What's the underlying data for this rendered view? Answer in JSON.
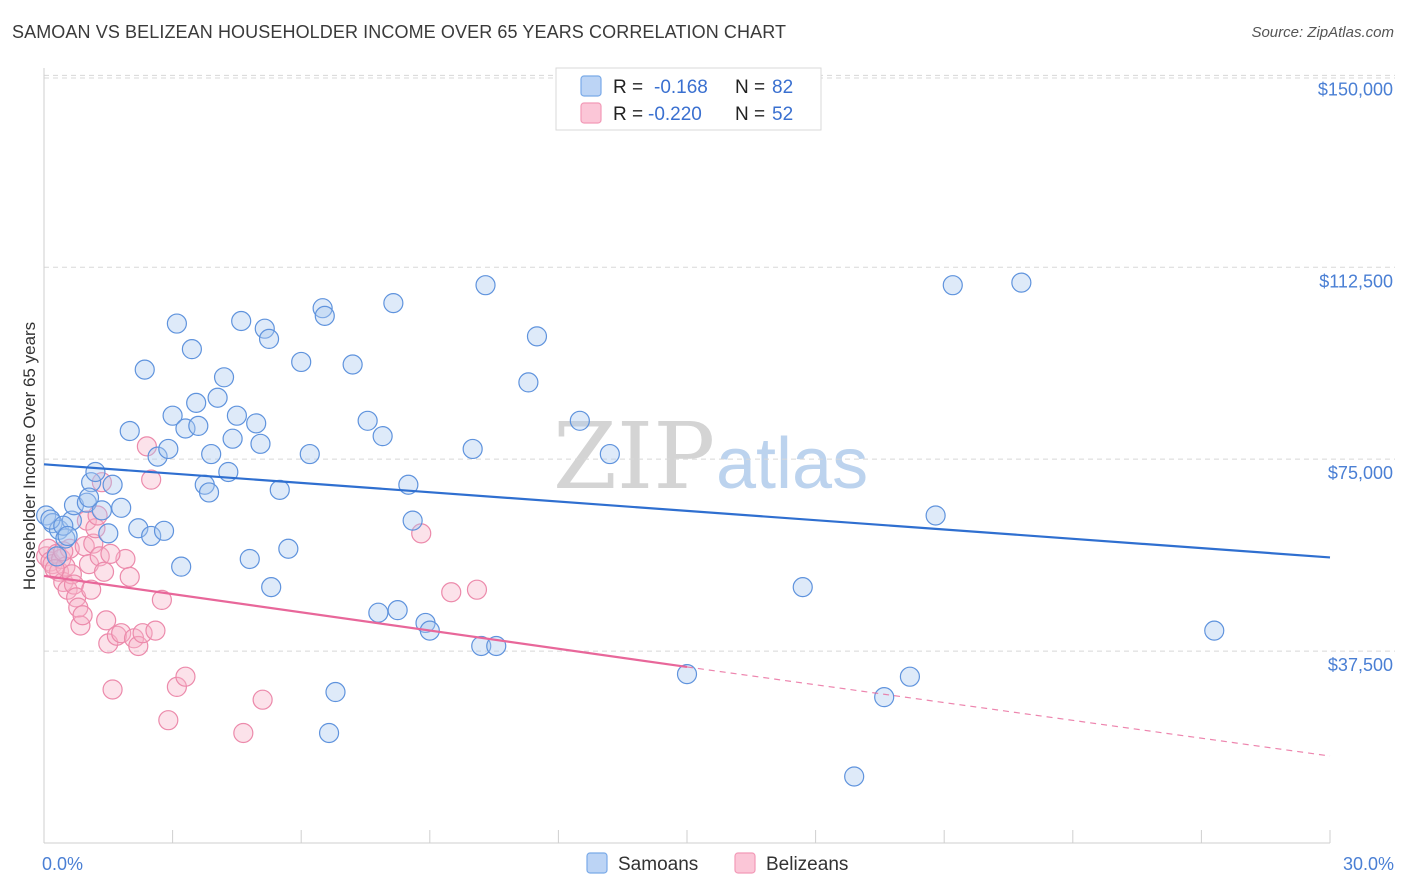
{
  "header": {
    "title": "SAMOAN VS BELIZEAN HOUSEHOLDER INCOME OVER 65 YEARS CORRELATION CHART",
    "source": "Source: ZipAtlas.com"
  },
  "legend": {
    "samoans": {
      "r_label": "R =",
      "r_value": "-0.168",
      "n_label": "N =",
      "n_value": "82"
    },
    "belizeans": {
      "r_label": "R =",
      "r_value": "-0.220",
      "n_label": "N =",
      "n_value": "52"
    }
  },
  "watermark": {
    "part1": "ZIP",
    "part2": "atlas"
  },
  "chart_data": {
    "type": "scatter",
    "title": "SAMOAN VS BELIZEAN HOUSEHOLDER INCOME OVER 65 YEARS CORRELATION CHART",
    "xlabel": "",
    "ylabel": "Householder Income Over 65 years",
    "xlim": [
      0,
      30
    ],
    "ylim": [
      0,
      153000
    ],
    "x_tick_labels": [
      "0.0%",
      "30.0%"
    ],
    "y_ticks": [
      37500,
      75000,
      112500,
      150000
    ],
    "y_tick_labels": [
      "$37,500",
      "$75,000",
      "$112,500",
      "$150,000"
    ],
    "grid": true,
    "legend_position": "top-center",
    "bottom_legend": [
      "Samoans",
      "Belizeans"
    ],
    "colors": {
      "samoans": "#7aaae8",
      "belizeans": "#f29ab7",
      "samoans_line": "#2f6fd0",
      "belizeans_line": "#e8679a"
    },
    "series": [
      {
        "name": "Samoans",
        "r": -0.168,
        "n": 82,
        "trend": {
          "x": [
            0,
            30
          ],
          "y": [
            74000,
            55800
          ]
        },
        "points": [
          [
            0.05,
            64000
          ],
          [
            0.2,
            62500
          ],
          [
            0.35,
            61200
          ],
          [
            0.5,
            59500
          ],
          [
            0.65,
            63000
          ],
          [
            0.15,
            63200
          ],
          [
            0.45,
            62000
          ],
          [
            0.55,
            60000
          ],
          [
            0.7,
            66000
          ],
          [
            1.0,
            66500
          ],
          [
            1.1,
            70500
          ],
          [
            1.2,
            72500
          ],
          [
            1.35,
            65000
          ],
          [
            1.5,
            60500
          ],
          [
            1.6,
            70000
          ],
          [
            1.8,
            65500
          ],
          [
            2.0,
            80500
          ],
          [
            2.2,
            61500
          ],
          [
            2.35,
            92500
          ],
          [
            2.5,
            60000
          ],
          [
            2.65,
            75500
          ],
          [
            2.8,
            61000
          ],
          [
            2.9,
            77000
          ],
          [
            3.0,
            83500
          ],
          [
            3.1,
            101500
          ],
          [
            3.2,
            54000
          ],
          [
            3.3,
            81000
          ],
          [
            3.45,
            96500
          ],
          [
            3.55,
            86000
          ],
          [
            3.6,
            81500
          ],
          [
            3.9,
            76000
          ],
          [
            3.75,
            70000
          ],
          [
            3.85,
            68500
          ],
          [
            4.05,
            87000
          ],
          [
            4.2,
            91000
          ],
          [
            4.3,
            72500
          ],
          [
            4.4,
            79000
          ],
          [
            4.5,
            83500
          ],
          [
            4.6,
            102000
          ],
          [
            4.8,
            55500
          ],
          [
            4.95,
            82000
          ],
          [
            5.05,
            78000
          ],
          [
            5.15,
            100500
          ],
          [
            5.25,
            98500
          ],
          [
            5.5,
            69000
          ],
          [
            5.7,
            57500
          ],
          [
            6.0,
            94000
          ],
          [
            6.2,
            76000
          ],
          [
            6.5,
            104500
          ],
          [
            6.55,
            103000
          ],
          [
            6.8,
            29500
          ],
          [
            6.65,
            21500
          ],
          [
            7.2,
            93500
          ],
          [
            7.55,
            82500
          ],
          [
            7.8,
            45000
          ],
          [
            7.9,
            79500
          ],
          [
            8.25,
            45500
          ],
          [
            8.15,
            105500
          ],
          [
            8.5,
            70000
          ],
          [
            8.6,
            63000
          ],
          [
            8.9,
            43000
          ],
          [
            9.0,
            41500
          ],
          [
            10.0,
            77000
          ],
          [
            10.2,
            38500
          ],
          [
            10.3,
            109000
          ],
          [
            10.55,
            38500
          ],
          [
            11.3,
            90000
          ],
          [
            11.5,
            99000
          ],
          [
            12.5,
            82500
          ],
          [
            13.2,
            76000
          ],
          [
            15.0,
            33000
          ],
          [
            17.7,
            50000
          ],
          [
            18.9,
            13000
          ],
          [
            19.6,
            28500
          ],
          [
            20.2,
            32500
          ],
          [
            20.8,
            64000
          ],
          [
            21.2,
            109000
          ],
          [
            22.8,
            109500
          ],
          [
            27.3,
            41500
          ],
          [
            5.3,
            50000
          ],
          [
            1.05,
            67500
          ],
          [
            0.3,
            56000
          ]
        ]
      },
      {
        "name": "Belizeans",
        "r": -0.22,
        "n": 52,
        "trend": {
          "x": [
            0,
            15
          ],
          "y": [
            52200,
            34400
          ]
        },
        "trend_extension": {
          "x": [
            15,
            30
          ],
          "y": [
            34400,
            17000
          ]
        },
        "points": [
          [
            0.05,
            56000
          ],
          [
            0.1,
            57500
          ],
          [
            0.15,
            55000
          ],
          [
            0.2,
            54500
          ],
          [
            0.3,
            56500
          ],
          [
            0.35,
            53000
          ],
          [
            0.4,
            55500
          ],
          [
            0.45,
            51000
          ],
          [
            0.5,
            54000
          ],
          [
            0.55,
            49500
          ],
          [
            0.6,
            57500
          ],
          [
            0.65,
            52500
          ],
          [
            0.7,
            50500
          ],
          [
            0.75,
            48000
          ],
          [
            0.8,
            46000
          ],
          [
            0.85,
            42500
          ],
          [
            0.9,
            44500
          ],
          [
            0.95,
            58000
          ],
          [
            1.0,
            63000
          ],
          [
            1.05,
            54500
          ],
          [
            1.1,
            49500
          ],
          [
            1.15,
            58500
          ],
          [
            1.2,
            61500
          ],
          [
            1.25,
            64000
          ],
          [
            1.3,
            56000
          ],
          [
            1.35,
            70500
          ],
          [
            1.4,
            53000
          ],
          [
            1.45,
            43500
          ],
          [
            1.5,
            39000
          ],
          [
            1.6,
            30000
          ],
          [
            1.7,
            40500
          ],
          [
            1.8,
            41000
          ],
          [
            1.9,
            55500
          ],
          [
            2.0,
            52000
          ],
          [
            2.1,
            40000
          ],
          [
            2.2,
            38500
          ],
          [
            2.3,
            41000
          ],
          [
            2.4,
            77500
          ],
          [
            2.5,
            71000
          ],
          [
            2.6,
            41500
          ],
          [
            2.75,
            47500
          ],
          [
            2.9,
            24000
          ],
          [
            3.1,
            30500
          ],
          [
            3.3,
            32500
          ],
          [
            4.65,
            21500
          ],
          [
            5.1,
            28000
          ],
          [
            8.8,
            60500
          ],
          [
            9.5,
            49000
          ],
          [
            10.1,
            49500
          ],
          [
            0.25,
            53500
          ],
          [
            1.55,
            56500
          ],
          [
            0.45,
            57000
          ]
        ]
      }
    ]
  }
}
